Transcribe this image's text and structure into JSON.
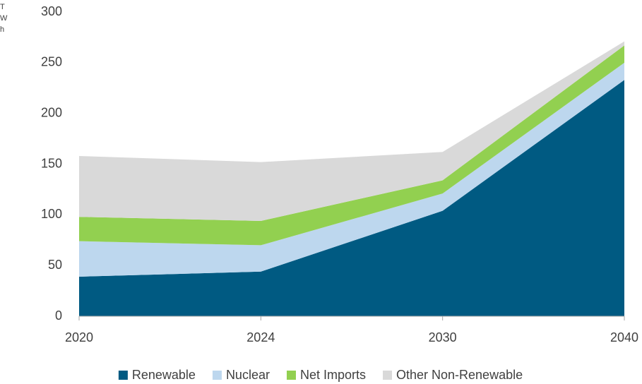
{
  "chart_data": {
    "type": "stacked_area",
    "y_label": "TWh",
    "categories": [
      "2020",
      "2024",
      "2030",
      "2040"
    ],
    "series": [
      {
        "name": "Renewable",
        "color": "#005a82",
        "values": [
          39,
          44,
          104,
          233
        ]
      },
      {
        "name": "Nuclear",
        "color": "#bdd7ee",
        "values": [
          35,
          26,
          17,
          17
        ]
      },
      {
        "name": "Net Imports",
        "color": "#92d050",
        "values": [
          24,
          24,
          13,
          17
        ]
      },
      {
        "name": "Other Non-Renewable",
        "color": "#d9d9d9",
        "values": [
          60,
          58,
          28,
          4
        ]
      }
    ],
    "ylim": [
      0,
      300
    ],
    "yticks": [
      0,
      50,
      100,
      150,
      200,
      250,
      300
    ],
    "grid": false,
    "legend": "bottom"
  }
}
